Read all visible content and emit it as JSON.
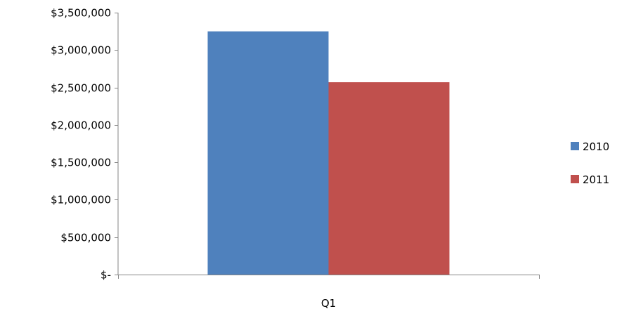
{
  "chart_data": {
    "type": "bar",
    "title": "",
    "xlabel": "",
    "ylabel": "",
    "categories": [
      "Q1"
    ],
    "series": [
      {
        "name": "2010",
        "values": [
          3250000
        ],
        "color": "#4F81BD"
      },
      {
        "name": "2011",
        "values": [
          2570000
        ],
        "color": "#C0504D"
      }
    ],
    "ylim": [
      0,
      3500000
    ],
    "yticks": [
      0,
      500000,
      1000000,
      1500000,
      2000000,
      2500000,
      3000000,
      3500000
    ],
    "ytick_labels": [
      "$-",
      "$500,000",
      "$1,000,000",
      "$1,500,000",
      "$2,000,000",
      "$2,500,000",
      "$3,000,000",
      "$3,500,000"
    ],
    "grid": false,
    "legend_position": "right"
  }
}
